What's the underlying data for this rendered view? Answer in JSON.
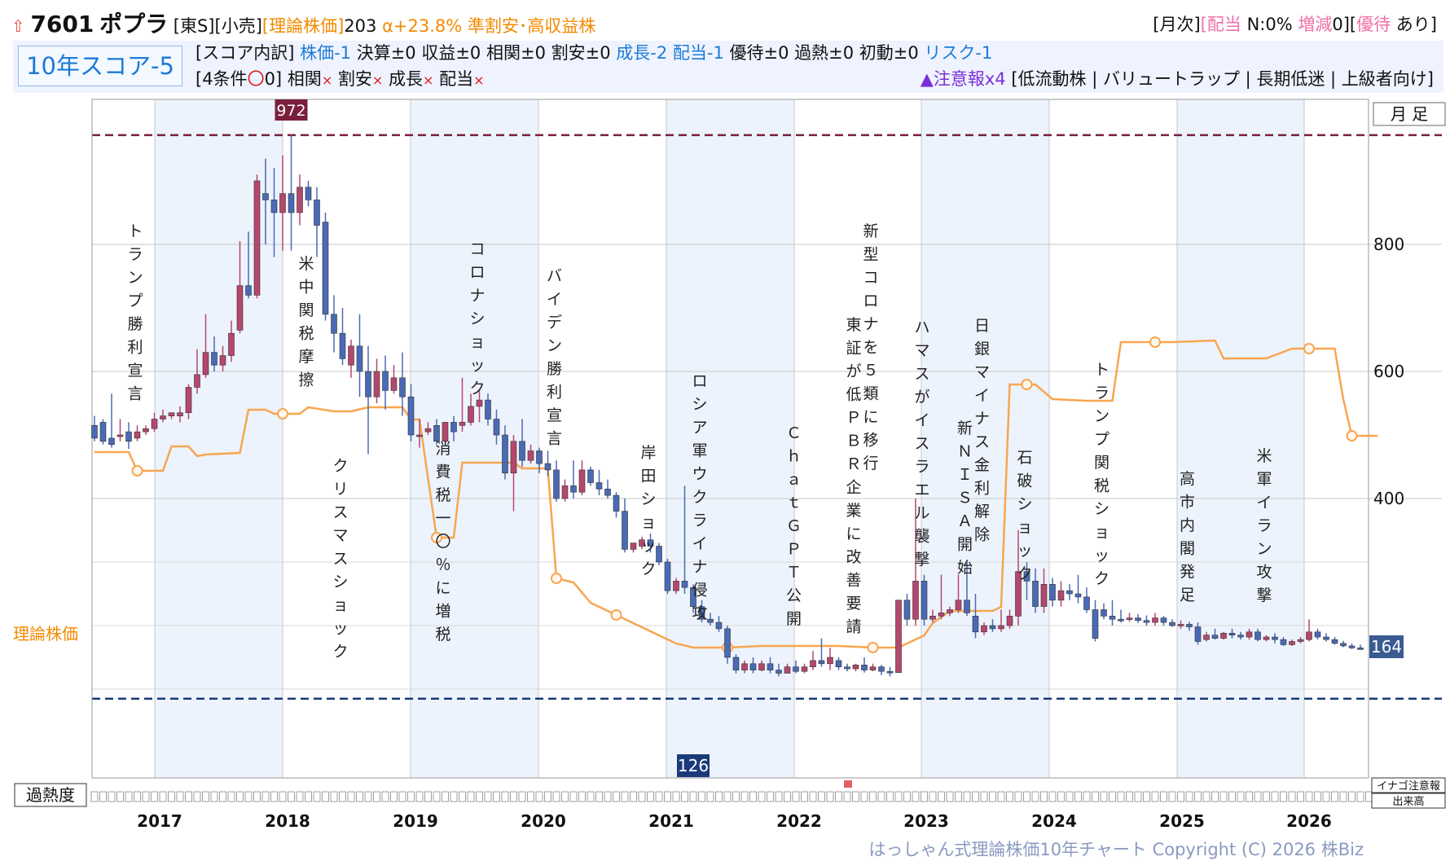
{
  "header": {
    "arrow_icon": "up-arrow-icon",
    "code": "7601",
    "name": "ポプラ",
    "market": "[東S][小売]",
    "theory_label": "[理論株価]",
    "theory_value": "203",
    "alpha": "α+23.8%",
    "tags": "準割安･高収益株",
    "monthly": "[月次]",
    "dividend_label": "[配当",
    "dividend_n": "N:0%",
    "change_label": "増減",
    "change_value": "0][",
    "yutai_label": "優待",
    "yutai_value": "あり]"
  },
  "score": {
    "title": "10年スコア-5",
    "breakdown_label": "[スコア内訳]",
    "items": [
      {
        "label": "株価-1",
        "color": "blue"
      },
      {
        "label": "決算±0",
        "color": "black"
      },
      {
        "label": "収益±0",
        "color": "black"
      },
      {
        "label": "相関±0",
        "color": "black"
      },
      {
        "label": "割安±0",
        "color": "black"
      },
      {
        "label": "成長-2",
        "color": "blue"
      },
      {
        "label": "配当-1",
        "color": "blue"
      },
      {
        "label": "優待±0",
        "color": "black"
      },
      {
        "label": "過熱±0",
        "color": "black"
      },
      {
        "label": "初動±0",
        "color": "black"
      },
      {
        "label": "リスク-1",
        "color": "blue"
      }
    ],
    "conditions_label": "[4条件",
    "conditions_circle": "〇",
    "conditions_count": "0]",
    "conditions": [
      {
        "label": "相関",
        "mark": "×"
      },
      {
        "label": "割安",
        "mark": "×"
      },
      {
        "label": "成長",
        "mark": "×"
      },
      {
        "label": "配当",
        "mark": "×"
      }
    ],
    "caution_label": "▲注意報x4",
    "caution_items": "[低流動株 | バリュートラップ | 長期低迷 | 上級者向け]"
  },
  "legend": {
    "timeframe": "月 足",
    "theory_line_label": "理論株価",
    "overheat_label": "過熱度",
    "inago_label": "イナゴ注意報",
    "volume_label": "出来高"
  },
  "footer": {
    "copyright": "はっしゃん式理論株価10年チャート Copyright (C) 2026 株Biz"
  },
  "colors": {
    "up": "#b5476e",
    "down": "#4a6ab5",
    "theory": "#f7a650",
    "band": "#edf3fc",
    "max_line": "#7a1f3d",
    "min_line": "#1a3a7a"
  },
  "chart_data": {
    "type": "candlestick",
    "ylim": [
      85,
      1000
    ],
    "yticks": [
      400,
      600,
      800
    ],
    "x_labels": [
      "2017",
      "2018",
      "2019",
      "2020",
      "2021",
      "2022",
      "2023",
      "2024",
      "2025",
      "2026"
    ],
    "max_price": 972,
    "min_price": 126,
    "last_price": 164,
    "candles": [
      [
        515,
        530,
        495,
        490
      ],
      [
        520,
        525,
        490,
        485
      ],
      [
        495,
        565,
        485,
        480
      ],
      [
        500,
        525,
        500,
        490
      ],
      [
        505,
        520,
        490,
        478
      ],
      [
        495,
        515,
        505,
        490
      ],
      [
        505,
        515,
        510,
        500
      ],
      [
        510,
        535,
        525,
        505
      ],
      [
        525,
        540,
        530,
        520
      ],
      [
        530,
        535,
        535,
        525
      ],
      [
        530,
        545,
        535,
        520
      ],
      [
        535,
        580,
        575,
        525
      ],
      [
        575,
        635,
        595,
        565
      ],
      [
        595,
        690,
        630,
        590
      ],
      [
        630,
        655,
        610,
        600
      ],
      [
        610,
        640,
        625,
        600
      ],
      [
        625,
        680,
        660,
        615
      ],
      [
        665,
        805,
        735,
        660
      ],
      [
        735,
        820,
        720,
        715
      ],
      [
        720,
        910,
        900,
        715
      ],
      [
        880,
        935,
        870,
        800
      ],
      [
        870,
        920,
        850,
        780
      ],
      [
        850,
        940,
        880,
        790
      ],
      [
        880,
        972,
        850,
        790
      ],
      [
        850,
        910,
        890,
        830
      ],
      [
        890,
        900,
        870,
        860
      ],
      [
        870,
        890,
        830,
        780
      ],
      [
        835,
        850,
        690,
        680
      ],
      [
        690,
        720,
        660,
        630
      ],
      [
        660,
        700,
        620,
        610
      ],
      [
        610,
        650,
        640,
        590
      ],
      [
        640,
        690,
        600,
        560
      ],
      [
        600,
        640,
        560,
        470
      ],
      [
        560,
        620,
        600,
        550
      ],
      [
        600,
        625,
        570,
        540
      ],
      [
        570,
        610,
        590,
        565
      ],
      [
        590,
        630,
        560,
        530
      ],
      [
        560,
        580,
        500,
        490
      ],
      [
        500,
        525,
        500,
        480
      ],
      [
        505,
        520,
        510,
        500
      ],
      [
        515,
        525,
        490,
        485
      ],
      [
        490,
        520,
        520,
        490
      ],
      [
        520,
        530,
        505,
        490
      ],
      [
        515,
        590,
        520,
        505
      ],
      [
        520,
        565,
        545,
        515
      ],
      [
        545,
        570,
        555,
        520
      ],
      [
        555,
        565,
        525,
        515
      ],
      [
        525,
        540,
        500,
        485
      ],
      [
        500,
        515,
        440,
        430
      ],
      [
        440,
        500,
        490,
        380
      ],
      [
        490,
        525,
        460,
        450
      ],
      [
        460,
        485,
        475,
        455
      ],
      [
        475,
        480,
        455,
        440
      ],
      [
        455,
        475,
        445,
        435
      ],
      [
        445,
        460,
        400,
        395
      ],
      [
        400,
        430,
        420,
        395
      ],
      [
        420,
        460,
        410,
        400
      ],
      [
        410,
        460,
        445,
        405
      ],
      [
        445,
        450,
        425,
        420
      ],
      [
        425,
        445,
        415,
        405
      ],
      [
        415,
        430,
        405,
        400
      ],
      [
        405,
        410,
        380,
        370
      ],
      [
        380,
        400,
        320,
        315
      ],
      [
        320,
        330,
        330,
        315
      ],
      [
        325,
        340,
        335,
        320
      ],
      [
        335,
        345,
        325,
        315
      ],
      [
        325,
        330,
        300,
        295
      ],
      [
        300,
        305,
        255,
        250
      ],
      [
        255,
        275,
        270,
        250
      ],
      [
        270,
        420,
        260,
        250
      ],
      [
        260,
        265,
        230,
        220
      ],
      [
        230,
        240,
        210,
        205
      ],
      [
        210,
        220,
        205,
        200
      ],
      [
        205,
        215,
        195,
        190
      ],
      [
        195,
        200,
        150,
        140
      ],
      [
        150,
        155,
        130,
        125
      ],
      [
        130,
        145,
        140,
        125
      ],
      [
        140,
        150,
        130,
        125
      ],
      [
        130,
        145,
        140,
        128
      ],
      [
        140,
        150,
        130,
        125
      ],
      [
        130,
        140,
        125,
        120
      ],
      [
        125,
        140,
        135,
        125
      ],
      [
        135,
        145,
        128,
        125
      ],
      [
        128,
        140,
        135,
        125
      ],
      [
        135,
        160,
        145,
        130
      ],
      [
        145,
        180,
        140,
        135
      ],
      [
        140,
        165,
        150,
        130
      ],
      [
        145,
        150,
        135,
        130
      ],
      [
        135,
        140,
        132,
        128
      ],
      [
        132,
        140,
        138,
        128
      ],
      [
        138,
        150,
        130,
        126
      ],
      [
        130,
        140,
        135,
        128
      ],
      [
        135,
        138,
        128,
        122
      ],
      [
        128,
        135,
        126,
        120
      ],
      [
        126,
        240,
        240,
        126
      ],
      [
        240,
        250,
        210,
        200
      ],
      [
        210,
        400,
        270,
        200
      ],
      [
        270,
        280,
        210,
        200
      ],
      [
        210,
        225,
        215,
        205
      ],
      [
        215,
        280,
        220,
        210
      ],
      [
        220,
        230,
        225,
        215
      ],
      [
        225,
        280,
        240,
        220
      ],
      [
        240,
        300,
        220,
        215
      ],
      [
        215,
        250,
        190,
        180
      ],
      [
        190,
        205,
        200,
        185
      ],
      [
        200,
        210,
        195,
        190
      ],
      [
        195,
        225,
        200,
        190
      ],
      [
        200,
        225,
        215,
        195
      ],
      [
        215,
        350,
        285,
        200
      ],
      [
        285,
        300,
        270,
        240
      ],
      [
        270,
        290,
        230,
        220
      ],
      [
        230,
        290,
        265,
        220
      ],
      [
        265,
        275,
        240,
        230
      ],
      [
        240,
        270,
        255,
        230
      ],
      [
        255,
        265,
        250,
        240
      ],
      [
        250,
        280,
        245,
        235
      ],
      [
        245,
        260,
        225,
        220
      ],
      [
        225,
        240,
        180,
        175
      ],
      [
        225,
        235,
        215,
        210
      ],
      [
        215,
        240,
        210,
        200
      ],
      [
        210,
        225,
        208,
        205
      ],
      [
        210,
        220,
        212,
        206
      ],
      [
        212,
        218,
        208,
        204
      ],
      [
        208,
        216,
        205,
        200
      ],
      [
        205,
        220,
        212,
        200
      ],
      [
        212,
        215,
        205,
        200
      ],
      [
        205,
        210,
        200,
        198
      ],
      [
        200,
        208,
        202,
        195
      ],
      [
        202,
        206,
        198,
        192
      ],
      [
        198,
        205,
        175,
        170
      ],
      [
        178,
        190,
        185,
        175
      ],
      [
        185,
        195,
        180,
        178
      ],
      [
        180,
        190,
        188,
        178
      ],
      [
        188,
        195,
        185,
        180
      ],
      [
        185,
        190,
        182,
        178
      ],
      [
        182,
        195,
        190,
        178
      ],
      [
        190,
        195,
        178,
        175
      ],
      [
        178,
        185,
        182,
        175
      ],
      [
        182,
        188,
        178,
        172
      ],
      [
        178,
        182,
        170,
        168
      ],
      [
        170,
        178,
        175,
        168
      ],
      [
        175,
        182,
        178,
        172
      ],
      [
        178,
        210,
        190,
        175
      ],
      [
        190,
        195,
        182,
        178
      ],
      [
        182,
        188,
        178,
        175
      ],
      [
        178,
        182,
        172,
        170
      ],
      [
        172,
        176,
        168,
        166
      ],
      [
        168,
        172,
        165,
        163
      ],
      [
        165,
        170,
        164,
        162
      ]
    ],
    "theory_line": [
      [
        0,
        235
      ],
      [
        4,
        235
      ],
      [
        5,
        212
      ],
      [
        8,
        212
      ],
      [
        9,
        242
      ],
      [
        11,
        242
      ],
      [
        12,
        230
      ],
      [
        13,
        232
      ],
      [
        17,
        234
      ],
      [
        18,
        287
      ],
      [
        20,
        287
      ],
      [
        21,
        282
      ],
      [
        24,
        282
      ],
      [
        25,
        290
      ],
      [
        28,
        285
      ],
      [
        30,
        285
      ],
      [
        32,
        290
      ],
      [
        36,
        290
      ],
      [
        37,
        275
      ],
      [
        38,
        275
      ],
      [
        40,
        130
      ],
      [
        42,
        130
      ],
      [
        43,
        222
      ],
      [
        49,
        222
      ],
      [
        50,
        215
      ],
      [
        53,
        215
      ],
      [
        54,
        80
      ],
      [
        56,
        75
      ],
      [
        58,
        50
      ],
      [
        61,
        35
      ],
      [
        64,
        20
      ],
      [
        66,
        10
      ],
      [
        68,
        0
      ],
      [
        70,
        -5
      ],
      [
        74,
        -5
      ],
      [
        78,
        -3
      ],
      [
        84,
        -3
      ],
      [
        87,
        -3
      ],
      [
        91,
        -5
      ],
      [
        94,
        -5
      ],
      [
        95,
        0
      ],
      [
        97,
        10
      ],
      [
        98,
        25
      ],
      [
        100,
        40
      ],
      [
        105,
        40
      ],
      [
        106,
        45
      ],
      [
        107,
        318
      ],
      [
        110,
        318
      ],
      [
        112,
        300
      ],
      [
        116,
        298
      ],
      [
        119,
        298
      ],
      [
        120,
        370
      ],
      [
        126,
        370
      ],
      [
        131,
        372
      ],
      [
        132,
        350
      ],
      [
        137,
        350
      ],
      [
        140,
        362
      ],
      [
        145,
        362
      ],
      [
        146,
        300
      ],
      [
        147,
        255
      ],
      [
        150,
        255
      ]
    ],
    "theory_markers": [
      5,
      22,
      40,
      54,
      61,
      74,
      91,
      109,
      124,
      142,
      147
    ],
    "events": [
      {
        "i": 4,
        "label": "トランプ勝利宣言"
      },
      {
        "i": 24,
        "label": "米中関税摩擦"
      },
      {
        "i": 28,
        "label": "クリスマスショック"
      },
      {
        "i": 40,
        "label": "消費税一〇％に増税"
      },
      {
        "i": 44,
        "label": "コロナショック"
      },
      {
        "i": 53,
        "label": "バイデン勝利宣言"
      },
      {
        "i": 64,
        "label": "岸田ショック"
      },
      {
        "i": 70,
        "label": "ロシア軍ウクライナ侵攻"
      },
      {
        "i": 81,
        "label": "ＣｈａｔＧＰＴ公開"
      },
      {
        "i": 88,
        "label": "東証が低ＰＢＲ企業に改善要請"
      },
      {
        "i": 90,
        "label": "新型コロナを５類に移行"
      },
      {
        "i": 96,
        "label": "ハマスがイスラエル襲撃"
      },
      {
        "i": 101,
        "label": "新ＮＩＳＡ開始"
      },
      {
        "i": 103,
        "label": "日銀マイナス金利解除"
      },
      {
        "i": 108,
        "label": "石破ショック"
      },
      {
        "i": 117,
        "label": "トランプ関税ショック"
      },
      {
        "i": 127,
        "label": "高市内閣発足"
      },
      {
        "i": 136,
        "label": "米軍イラン攻撃"
      }
    ]
  }
}
